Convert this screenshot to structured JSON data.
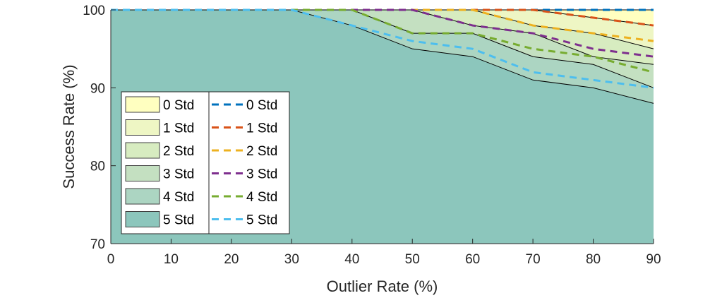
{
  "chart_data": {
    "type": "area",
    "title": "",
    "xlabel": "Outlier Rate (%)",
    "ylabel": "Success Rate (%)",
    "xlim": [
      0,
      90
    ],
    "ylim": [
      70,
      100
    ],
    "xticks": [
      "0",
      "10",
      "20",
      "30",
      "40",
      "50",
      "60",
      "70",
      "80",
      "90"
    ],
    "yticks": [
      "70",
      "80",
      "90",
      "100"
    ],
    "x": [
      0,
      30,
      40,
      50,
      60,
      70,
      80,
      90
    ],
    "grid": false,
    "legend_position": "lower-left",
    "area_series": [
      {
        "name": "0 Std",
        "color": "#ffffc0",
        "values": [
          100,
          100,
          100,
          100,
          100,
          100,
          100,
          100
        ]
      },
      {
        "name": "1 Std",
        "color": "#eef6c4",
        "values": [
          100,
          100,
          100,
          100,
          100,
          100,
          99,
          98
        ]
      },
      {
        "name": "2 Std",
        "color": "#d7ecc0",
        "values": [
          100,
          100,
          100,
          100,
          100,
          98,
          97,
          95
        ]
      },
      {
        "name": "3 Std",
        "color": "#c4e0c1",
        "values": [
          100,
          100,
          100,
          100,
          98,
          97,
          94,
          93
        ]
      },
      {
        "name": "4 Std",
        "color": "#acd5c2",
        "values": [
          100,
          100,
          100,
          97,
          97,
          94,
          93,
          90
        ]
      },
      {
        "name": "5 Std",
        "color": "#8cc6bc",
        "values": [
          100,
          100,
          98,
          95,
          94,
          91,
          90,
          88
        ]
      }
    ],
    "line_series": [
      {
        "name": "0 Std",
        "color": "#0072bd",
        "style": "dashed",
        "values": [
          100,
          100,
          100,
          100,
          100,
          100,
          100,
          100
        ]
      },
      {
        "name": "1 Std",
        "color": "#d95319",
        "style": "dashed",
        "values": [
          100,
          100,
          100,
          100,
          100,
          100,
          99,
          98
        ]
      },
      {
        "name": "2 Std",
        "color": "#edb120",
        "style": "dashed",
        "values": [
          100,
          100,
          100,
          100,
          100,
          98,
          97,
          96
        ]
      },
      {
        "name": "3 Std",
        "color": "#7e2f8e",
        "style": "dashed",
        "values": [
          100,
          100,
          100,
          100,
          98,
          97,
          95,
          94
        ]
      },
      {
        "name": "4 Std",
        "color": "#77ac30",
        "style": "dashed",
        "values": [
          100,
          100,
          100,
          97,
          97,
          95,
          94,
          92
        ]
      },
      {
        "name": "5 Std",
        "color": "#4dbeee",
        "style": "dashed",
        "values": [
          100,
          100,
          98,
          96,
          95,
          92,
          91,
          90
        ]
      }
    ]
  }
}
